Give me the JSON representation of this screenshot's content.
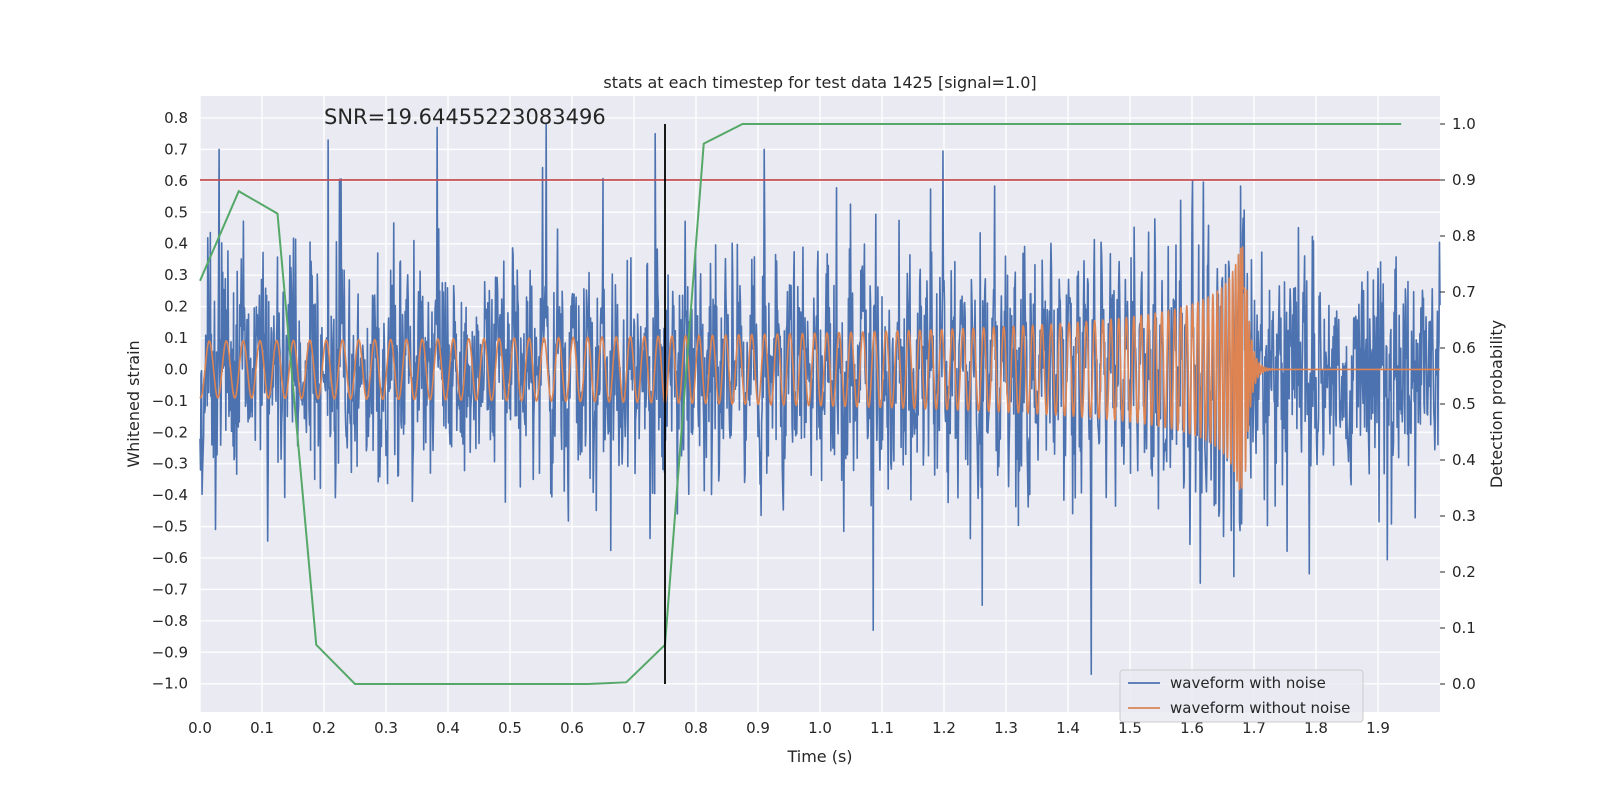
{
  "chart_data": {
    "type": "line",
    "title": "stats at each timestep for test data 1425 [signal=1.0]",
    "annotation": "SNR=19.64455223083496",
    "xlabel": "Time (s)",
    "ylabel_left": "Whitened strain",
    "ylabel_right": "Detection probability",
    "xlim": [
      0.0,
      2.0
    ],
    "ylim_left": [
      -1.09,
      0.87
    ],
    "ylim_right": [
      -0.05,
      1.05
    ],
    "x_ticks": [
      "0.0",
      "0.1",
      "0.2",
      "0.3",
      "0.4",
      "0.5",
      "0.6",
      "0.7",
      "0.8",
      "0.9",
      "1.0",
      "1.1",
      "1.2",
      "1.3",
      "1.4",
      "1.5",
      "1.6",
      "1.7",
      "1.8",
      "1.9"
    ],
    "y_left_ticks": [
      "0.8",
      "0.7",
      "0.6",
      "0.5",
      "0.4",
      "0.3",
      "0.2",
      "0.1",
      "0.0",
      "−0.1",
      "−0.2",
      "−0.3",
      "−0.4",
      "−0.5",
      "−0.6",
      "−0.7",
      "−0.8",
      "−0.9",
      "−1.0"
    ],
    "y_right_ticks": [
      "1.0",
      "0.9",
      "0.8",
      "0.7",
      "0.6",
      "0.5",
      "0.4",
      "0.3",
      "0.2",
      "0.1",
      "0.0"
    ],
    "grid": true,
    "legend_position": "lower-right",
    "series": [
      {
        "name": "waveform with noise",
        "color": "#4c72b0",
        "axis": "left",
        "noise_amplitude": 0.3,
        "outlier_peaks": [
          0.7,
          0.73,
          0.77,
          0.78,
          0.75,
          0.7,
          -0.83,
          -0.75,
          -0.97,
          -0.68,
          -0.65
        ]
      },
      {
        "name": "waveform without noise",
        "color": "#dd8452",
        "axis": "left",
        "chirp_start_amplitude": 0.09,
        "chirp_peak_amplitude": 0.39,
        "merger_time": 1.685,
        "ringdown_end": 1.73
      },
      {
        "name": "detection probability",
        "color": "#55a868",
        "axis": "right",
        "x": [
          0.0,
          0.0625,
          0.125,
          0.1875,
          0.25,
          0.3125,
          0.375,
          0.4375,
          0.5,
          0.5625,
          0.625,
          0.6875,
          0.75,
          0.8125,
          0.875,
          0.9375,
          1.0,
          1.5,
          1.9375
        ],
        "values": [
          0.72,
          0.88,
          0.84,
          0.07,
          0.0,
          0.0,
          0.0,
          0.0,
          0.0,
          0.0,
          0.0,
          0.003,
          0.07,
          0.965,
          1.0,
          1.0,
          1.0,
          1.0,
          1.0
        ]
      }
    ],
    "threshold": {
      "value": 0.9,
      "axis": "right",
      "color": "#c44e52"
    },
    "marker_line": {
      "x": 0.75,
      "color": "#000000",
      "y_from": 0.0,
      "y_to": 1.0
    }
  }
}
